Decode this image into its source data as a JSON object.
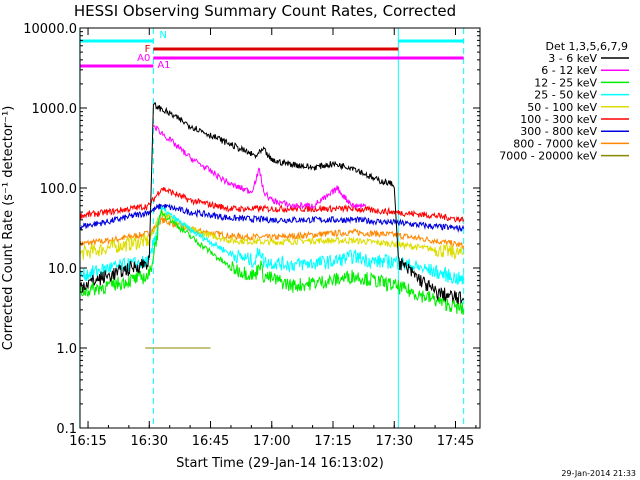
{
  "chart_data": {
    "type": "line",
    "title": "HESSI Observing Summary Count Rates, Corrected",
    "xlabel": "Start Time (29-Jan-14 16:13:02)",
    "ylabel": "Corrected Count Rate (s⁻¹ detector⁻¹)",
    "yscale": "log",
    "xlim": [
      "16:13:02",
      "17:51:00"
    ],
    "ylim": [
      0.1,
      10000
    ],
    "x_ticks": [
      "16:15",
      "16:30",
      "16:45",
      "17:00",
      "17:15",
      "17:30",
      "17:45"
    ],
    "y_ticks": [
      "0.1",
      "1.0",
      "10.0",
      "100.0",
      "1000.0",
      "10000.0"
    ],
    "grid": false,
    "legend": {
      "position": "right",
      "title": "Det 1,3,5,6,7,9",
      "entries": [
        {
          "name": "3 - 6 keV",
          "color": "#000000"
        },
        {
          "name": "6 - 12 keV",
          "color": "#ff00ff"
        },
        {
          "name": "12 - 25 keV",
          "color": "#00ee00"
        },
        {
          "name": "25 - 50 keV",
          "color": "#00ffff"
        },
        {
          "name": "50 - 100 keV",
          "color": "#dddd00"
        },
        {
          "name": "100 - 300 keV",
          "color": "#ff0000"
        },
        {
          "name": "300 - 800 keV",
          "color": "#0000dd"
        },
        {
          "name": "800 - 7000 keV",
          "color": "#ff8800"
        },
        {
          "name": "7000 - 20000 keV",
          "color": "#888800"
        }
      ]
    },
    "series": [
      {
        "name": "3 - 6 keV",
        "color": "#000000",
        "x": [
          "16:13",
          "16:20",
          "16:28",
          "16:30",
          "16:31",
          "16:35",
          "16:40",
          "16:50",
          "16:56",
          "16:58",
          "17:00",
          "17:10",
          "17:15",
          "17:20",
          "17:25",
          "17:30",
          "17:31",
          "17:40",
          "17:47"
        ],
        "y": [
          6,
          8,
          11,
          12,
          1100,
          850,
          600,
          350,
          250,
          300,
          220,
          180,
          200,
          180,
          130,
          110,
          12,
          5,
          4
        ]
      },
      {
        "name": "6 - 12 keV",
        "color": "#ff00ff",
        "x": [
          "16:31",
          "16:35",
          "16:40",
          "16:50",
          "16:55",
          "16:57",
          "16:58",
          "17:00",
          "17:05",
          "17:10",
          "17:14",
          "17:16",
          "17:18",
          "17:20",
          "17:23"
        ],
        "y": [
          600,
          400,
          240,
          110,
          90,
          170,
          90,
          70,
          60,
          60,
          80,
          100,
          75,
          60,
          60
        ]
      },
      {
        "name": "12 - 25 keV",
        "color": "#00ee00",
        "x": [
          "16:13",
          "16:20",
          "16:30",
          "16:33",
          "16:40",
          "16:50",
          "16:56",
          "16:57",
          "16:58",
          "17:05",
          "17:15",
          "17:20",
          "17:25",
          "17:30",
          "17:40",
          "17:47"
        ],
        "y": [
          5,
          6,
          8,
          50,
          25,
          10,
          8,
          12,
          8,
          6,
          7,
          8,
          7,
          6,
          4,
          3
        ]
      },
      {
        "name": "25 - 50 keV",
        "color": "#00ffff",
        "x": [
          "16:13",
          "16:20",
          "16:30",
          "16:33",
          "16:40",
          "16:50",
          "16:56",
          "16:57",
          "16:58",
          "17:05",
          "17:15",
          "17:20",
          "17:25",
          "17:30",
          "17:40",
          "17:47"
        ],
        "y": [
          8,
          10,
          12,
          55,
          30,
          15,
          12,
          18,
          12,
          11,
          12,
          14,
          12,
          12,
          9,
          7
        ]
      },
      {
        "name": "50 - 100 keV",
        "color": "#dddd00",
        "x": [
          "16:13",
          "16:20",
          "16:30",
          "16:33",
          "16:40",
          "16:50",
          "17:00",
          "17:10",
          "17:20",
          "17:30",
          "17:40",
          "17:47"
        ],
        "y": [
          15,
          18,
          22,
          50,
          30,
          22,
          21,
          22,
          22,
          20,
          17,
          15
        ]
      },
      {
        "name": "100 - 300 keV",
        "color": "#ff0000",
        "x": [
          "16:13",
          "16:20",
          "16:30",
          "16:33",
          "16:40",
          "16:50",
          "17:00",
          "17:10",
          "17:20",
          "17:30",
          "17:40",
          "17:47"
        ],
        "y": [
          45,
          50,
          60,
          100,
          70,
          55,
          55,
          55,
          55,
          50,
          45,
          40
        ]
      },
      {
        "name": "300 - 800 keV",
        "color": "#0000dd",
        "x": [
          "16:13",
          "16:20",
          "16:30",
          "16:33",
          "16:40",
          "16:50",
          "17:00",
          "17:10",
          "17:20",
          "17:30",
          "17:40",
          "17:47"
        ],
        "y": [
          33,
          38,
          50,
          60,
          50,
          42,
          40,
          40,
          40,
          37,
          33,
          31
        ]
      },
      {
        "name": "800 - 7000 keV",
        "color": "#ff8800",
        "x": [
          "16:13",
          "16:20",
          "16:30",
          "16:33",
          "16:40",
          "16:50",
          "17:00",
          "17:10",
          "17:20",
          "17:30",
          "17:40",
          "17:47"
        ],
        "y": [
          20,
          22,
          27,
          40,
          30,
          25,
          24,
          26,
          28,
          26,
          22,
          19
        ]
      },
      {
        "name": "7000 - 20000 keV",
        "color": "#888800",
        "x": [
          "16:29",
          "16:45"
        ],
        "y": [
          1,
          1
        ]
      }
    ],
    "attenuator_bars": [
      {
        "label": "N",
        "color": "#00ffff",
        "intervals": [
          [
            "16:13",
            "16:31"
          ],
          [
            "17:31",
            "17:47"
          ]
        ]
      },
      {
        "label": "F",
        "color": "#dd0000",
        "intervals": [
          [
            "16:31",
            "17:31"
          ]
        ]
      },
      {
        "label": "A0",
        "color": "#ff00ff",
        "intervals": [
          [
            "16:13",
            "16:31"
          ]
        ]
      },
      {
        "label": "A1",
        "color": "#ff00ff",
        "intervals": [
          [
            "16:31",
            "17:47"
          ]
        ]
      }
    ],
    "vertical_markers": [
      {
        "time": "16:13",
        "style": "solid",
        "color": "#00ffff"
      },
      {
        "time": "16:31",
        "style": "dashed",
        "color": "#00ffff"
      },
      {
        "time": "17:31",
        "style": "solid",
        "color": "#00ffff"
      },
      {
        "time": "17:47",
        "style": "dashed",
        "color": "#00ffff"
      }
    ]
  },
  "footer": {
    "timestamp": "29-Jan-2014 21:33"
  }
}
